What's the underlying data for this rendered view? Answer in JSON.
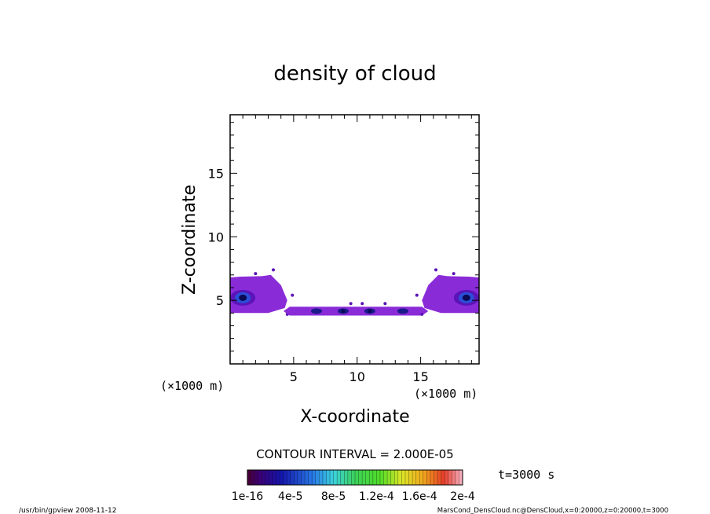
{
  "chart_data": {
    "type": "heatmap",
    "title": "density of cloud",
    "xlabel": "X-coordinate",
    "ylabel": "Z-coordinate",
    "x_unit_label": "(×1000 m)",
    "y_unit_label": "(×1000 m)",
    "xlim": [
      0,
      19.6
    ],
    "ylim": [
      0,
      19.6
    ],
    "x_ticks": [
      5,
      10,
      15
    ],
    "y_ticks": [
      5,
      10,
      15
    ],
    "contour_interval_text": "CONTOUR INTERVAL = 2.000E-05",
    "time_label": "t=3000 s",
    "colorbar_labels": [
      "1e-16",
      "4e-5",
      "8e-5",
      "1.2e-4",
      "1.6e-4",
      "2e-4"
    ],
    "colorbar_range": [
      0,
      0.0002
    ],
    "cloud_regions": [
      {
        "x": [
          0.0,
          4.5
        ],
        "z": [
          4.0,
          6.8
        ],
        "level": "low",
        "peak_x": 1.0,
        "peak_z": 5.2
      },
      {
        "x": [
          4.2,
          15.6
        ],
        "z": [
          3.8,
          4.5
        ],
        "level": "low",
        "peak_x": 9.0,
        "peak_z": 4.2
      },
      {
        "x": [
          15.1,
          19.6
        ],
        "z": [
          4.0,
          6.8
        ],
        "level": "low",
        "peak_x": 18.6,
        "peak_z": 5.2
      }
    ],
    "footer_left": "/usr/bin/gpview   2008-11-12",
    "footer_right": "MarsCond_DensCloud.nc@DensCloud,x=0:20000,z=0:20000,t=3000"
  }
}
